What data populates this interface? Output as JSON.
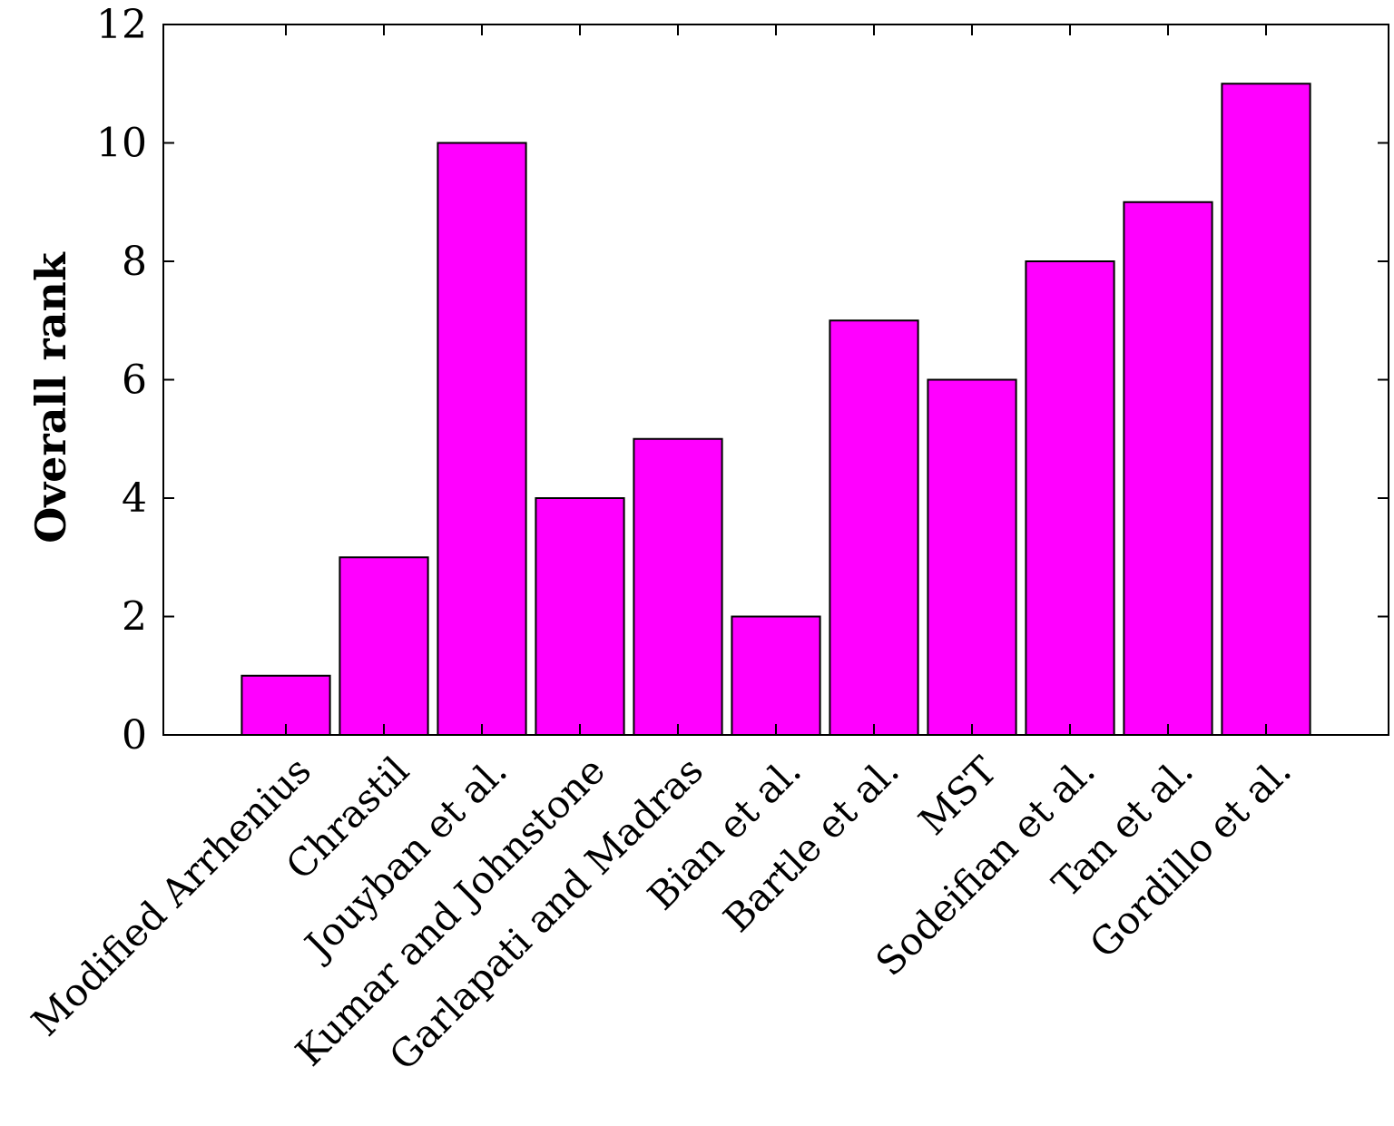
{
  "chart_data": {
    "type": "bar",
    "title": "",
    "xlabel": "",
    "ylabel": "Overall rank",
    "ylim": [
      0,
      12
    ],
    "yticks": [
      0,
      2,
      4,
      6,
      8,
      10,
      12
    ],
    "grid": false,
    "legend": "none",
    "bar_color": "#ff00ff",
    "categories": [
      "Modified Arrhenius",
      "Chrastil",
      "Jouyban et al.",
      "Kumar and Johnstone",
      "Garlapati and Madras",
      "Bian et al.",
      "Bartle et al.",
      "MST",
      "Sodeifian et al.",
      "Tan et al.",
      "Gordillo et al."
    ],
    "values": [
      1,
      3,
      10,
      4,
      5,
      2,
      7,
      6,
      8,
      9,
      11
    ]
  }
}
